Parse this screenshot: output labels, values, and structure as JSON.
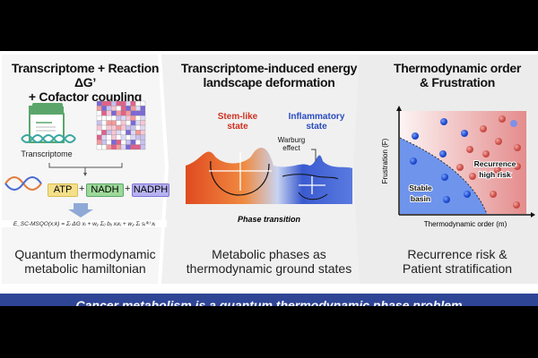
{
  "panels": [
    {
      "title_line1": "Transcriptome + Reaction ΔG’",
      "title_line2": "+ Cofactor coupling",
      "transcriptome_label": "Transcriptome",
      "cofactors": [
        "ATP",
        "NADH",
        "NADPH"
      ],
      "plus": "+",
      "equation": "E_SC-MSQO(x;k) = Σᵢ ΔG xᵢ + w₁ Σᵢⱼ bᵢⱼ xᵢxⱼ + w₂ Σᵢ sᵢ⁽ᵏ⁾ xᵢ",
      "caption_line1": "Quantum thermodynamic",
      "caption_line2": "metabolic hamiltonian"
    },
    {
      "title_line1": "Transcriptome-induced energy",
      "title_line2": "landscape deformation",
      "state_left_line1": "Stem-like",
      "state_left_line2": "state",
      "state_right_line1": "Inflammatory",
      "state_right_line2": "state",
      "annotation_line1": "Warburg",
      "annotation_line2": "effect",
      "landscape_label": "Phase transition",
      "caption_line1": "Metabolic phases as",
      "caption_line2": "thermodynamic ground states"
    },
    {
      "title_line1": "Thermodynamic order",
      "title_line2": "& Frustration",
      "ylabel": "Frustration (F)",
      "xlabel": "Thermodynamic order (m)",
      "region_stable_line1": "Stable",
      "region_stable_line2": "basin",
      "region_risk_line1": "Recurrence",
      "region_risk_line2": "high risk",
      "caption_line1": "Recurrence risk &",
      "caption_line2": "Patient stratification"
    }
  ],
  "banner": "Cancer metabolism is a quantum thermodynamic phase problem",
  "colors": {
    "banner": "#2e4495",
    "stem": "#d03020",
    "inflammatory": "#2a4cc0",
    "atp": "#f5e08a",
    "nadh": "#9ed99a",
    "nadph": "#b7b2f0"
  }
}
